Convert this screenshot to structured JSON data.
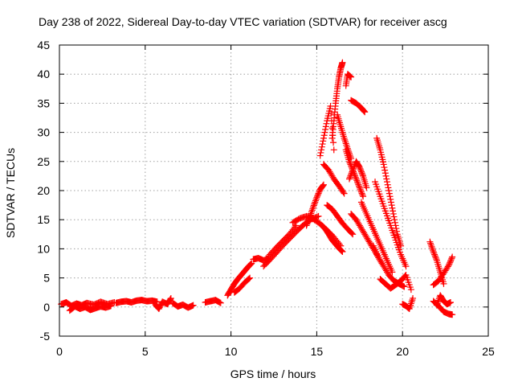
{
  "chart_data": {
    "type": "scatter",
    "title": "Day 238 of 2022, Sidereal Day-to-day VTEC variation (SDTVAR) for receiver ascg",
    "xlabel": "GPS time / hours",
    "ylabel": "SDTVAR / TECUs",
    "xlim": [
      0,
      25
    ],
    "ylim": [
      -5,
      45
    ],
    "x_ticks": [
      0,
      5,
      10,
      15,
      20,
      25
    ],
    "y_ticks": [
      -5,
      0,
      5,
      10,
      15,
      20,
      25,
      30,
      35,
      40,
      45
    ],
    "grid": true,
    "marker": "plus",
    "color": "#ff0000",
    "segments": [
      {
        "x": [
          0.1,
          0.4,
          0.7,
          1.0,
          1.3,
          1.6,
          2.0,
          2.4,
          2.8,
          3.2
        ],
        "y": [
          0.5,
          0.8,
          0.2,
          0.6,
          0.3,
          0.7,
          0.4,
          0.9,
          0.5,
          0.8
        ]
      },
      {
        "x": [
          0.6,
          0.9,
          1.2,
          1.5,
          1.8,
          2.1,
          2.4,
          2.7,
          3.0
        ],
        "y": [
          -0.6,
          0.1,
          -0.3,
          0.0,
          -0.5,
          -0.2,
          0.1,
          -0.1,
          0.2
        ]
      },
      {
        "x": [
          3.3,
          3.6,
          3.9,
          4.2,
          4.5,
          4.8,
          5.1,
          5.4,
          5.7
        ],
        "y": [
          0.7,
          0.9,
          1.0,
          0.8,
          1.1,
          1.2,
          1.0,
          1.1,
          0.9
        ]
      },
      {
        "x": [
          5.6,
          5.8,
          6.0,
          6.3,
          6.5
        ],
        "y": [
          0.4,
          -0.3,
          0.9,
          0.5,
          1.5
        ]
      },
      {
        "x": [
          6.6,
          6.9,
          7.2,
          7.5,
          7.8
        ],
        "y": [
          0.7,
          0.1,
          0.4,
          -0.1,
          0.3
        ]
      },
      {
        "x": [
          8.5,
          8.8,
          9.1,
          9.4
        ],
        "y": [
          0.8,
          1.0,
          1.2,
          0.7
        ]
      },
      {
        "x": [
          9.8,
          10.0,
          10.2,
          10.4,
          10.6,
          10.8,
          11.0,
          11.2
        ],
        "y": [
          2.0,
          3.0,
          4.0,
          4.8,
          5.5,
          6.2,
          6.9,
          7.5
        ]
      },
      {
        "x": [
          10.2,
          10.5,
          10.8,
          11.1
        ],
        "y": [
          2.5,
          3.2,
          4.2,
          5.0
        ]
      },
      {
        "x": [
          11.3,
          11.6,
          11.9,
          12.2
        ],
        "y": [
          8.2,
          8.4,
          8.0,
          8.3
        ]
      },
      {
        "x": [
          11.9,
          12.3,
          12.7,
          13.1,
          13.5,
          13.9,
          14.3,
          14.7,
          15.1
        ],
        "y": [
          7.0,
          8.2,
          9.5,
          10.8,
          12.0,
          13.2,
          14.3,
          15.1,
          15.6
        ]
      },
      {
        "x": [
          12.2,
          12.6,
          13.0,
          13.4,
          13.8
        ],
        "y": [
          8.8,
          10.1,
          11.3,
          12.5,
          14.0
        ]
      },
      {
        "x": [
          14.4,
          14.6,
          14.8,
          15.0,
          15.2,
          15.4
        ],
        "y": [
          14.0,
          15.5,
          17.2,
          18.8,
          20.2,
          21.0
        ]
      },
      {
        "x": [
          13.6,
          14.0,
          14.4,
          14.8,
          15.2,
          15.6,
          16.0,
          16.4
        ],
        "y": [
          14.5,
          15.2,
          15.6,
          15.1,
          14.3,
          13.2,
          12.0,
          10.5
        ]
      },
      {
        "x": [
          15.3,
          15.5,
          15.7,
          15.9,
          16.1,
          16.3,
          16.5
        ],
        "y": [
          14.0,
          13.4,
          12.5,
          11.5,
          10.8,
          10.1,
          9.5
        ]
      },
      {
        "x": [
          15.2,
          15.4,
          15.6,
          15.8,
          16.0
        ],
        "y": [
          26.0,
          29.0,
          32.0,
          34.5,
          27.0
        ]
      },
      {
        "x": [
          15.4,
          15.7,
          16.0,
          16.3,
          16.6
        ],
        "y": [
          24.5,
          23.5,
          22.0,
          20.8,
          19.5
        ]
      },
      {
        "x": [
          15.6,
          15.9,
          16.2,
          16.5,
          16.8,
          17.1
        ],
        "y": [
          17.5,
          16.8,
          15.6,
          14.4,
          13.4,
          12.5
        ]
      },
      {
        "x": [
          15.9,
          16.0,
          16.1,
          16.2,
          16.3,
          16.4,
          16.5
        ],
        "y": [
          29.0,
          32.0,
          35.0,
          37.5,
          39.5,
          41.0,
          42.0
        ]
      },
      {
        "x": [
          16.2,
          16.4,
          16.6,
          16.8,
          17.0
        ],
        "y": [
          33.0,
          31.0,
          29.0,
          27.2,
          25.5
        ]
      },
      {
        "x": [
          16.7,
          16.8,
          17.0
        ],
        "y": [
          38.0,
          40.0,
          39.5
        ]
      },
      {
        "x": [
          17.0,
          17.3,
          17.6,
          17.8
        ],
        "y": [
          35.5,
          35.0,
          34.2,
          33.5
        ]
      },
      {
        "x": [
          16.7,
          16.9,
          17.1,
          17.3,
          17.5,
          17.7
        ],
        "y": [
          27.0,
          25.0,
          23.5,
          22.0,
          20.5,
          19.0
        ]
      },
      {
        "x": [
          16.9,
          17.1,
          17.3,
          17.5,
          17.7,
          17.9
        ],
        "y": [
          22.0,
          23.5,
          25.0,
          24.0,
          22.5,
          20.5
        ]
      },
      {
        "x": [
          17.0,
          17.3,
          17.6,
          17.9,
          18.2,
          18.5,
          18.8
        ],
        "y": [
          16.0,
          15.0,
          13.5,
          12.0,
          10.5,
          9.0,
          7.5
        ]
      },
      {
        "x": [
          17.6,
          17.9,
          18.2,
          18.5,
          18.8,
          19.1,
          19.4
        ],
        "y": [
          18.0,
          16.0,
          14.0,
          12.0,
          10.0,
          8.0,
          6.0
        ]
      },
      {
        "x": [
          18.3,
          18.6,
          18.9,
          19.2,
          19.5,
          19.8,
          20.1
        ],
        "y": [
          10.5,
          8.5,
          7.0,
          5.5,
          4.5,
          4.0,
          3.5
        ]
      },
      {
        "x": [
          18.5,
          18.7,
          18.9,
          19.1,
          19.3,
          19.5,
          19.7,
          19.9
        ],
        "y": [
          29.0,
          27.0,
          24.5,
          21.5,
          18.5,
          15.5,
          12.5,
          10.5
        ]
      },
      {
        "x": [
          18.4,
          18.7,
          19.0,
          19.3,
          19.6,
          19.9,
          20.2
        ],
        "y": [
          21.5,
          19.0,
          16.5,
          14.0,
          11.5,
          9.0,
          7.0
        ]
      },
      {
        "x": [
          18.7,
          19.0,
          19.3,
          19.6,
          19.9,
          20.2,
          20.5
        ],
        "y": [
          4.8,
          4.0,
          3.2,
          3.8,
          4.5,
          5.5,
          3.0
        ]
      },
      {
        "x": [
          20.0,
          20.2,
          20.4,
          20.6
        ],
        "y": [
          0.5,
          0.2,
          -0.3,
          1.5
        ]
      },
      {
        "x": [
          21.6,
          21.8,
          22.0,
          22.2,
          22.4
        ],
        "y": [
          11.2,
          9.5,
          8.0,
          6.0,
          4.0
        ]
      },
      {
        "x": [
          21.8,
          22.1,
          22.4,
          22.7,
          22.9
        ],
        "y": [
          3.8,
          4.5,
          5.8,
          7.2,
          8.6
        ]
      },
      {
        "x": [
          21.8,
          22.1,
          22.4,
          22.7,
          22.9
        ],
        "y": [
          1.0,
          0.2,
          -0.8,
          -1.2,
          -1.3
        ]
      },
      {
        "x": [
          22.0,
          22.2,
          22.4,
          22.6,
          22.8
        ],
        "y": [
          0.3,
          2.0,
          1.0,
          0.5,
          0.8
        ]
      }
    ]
  }
}
